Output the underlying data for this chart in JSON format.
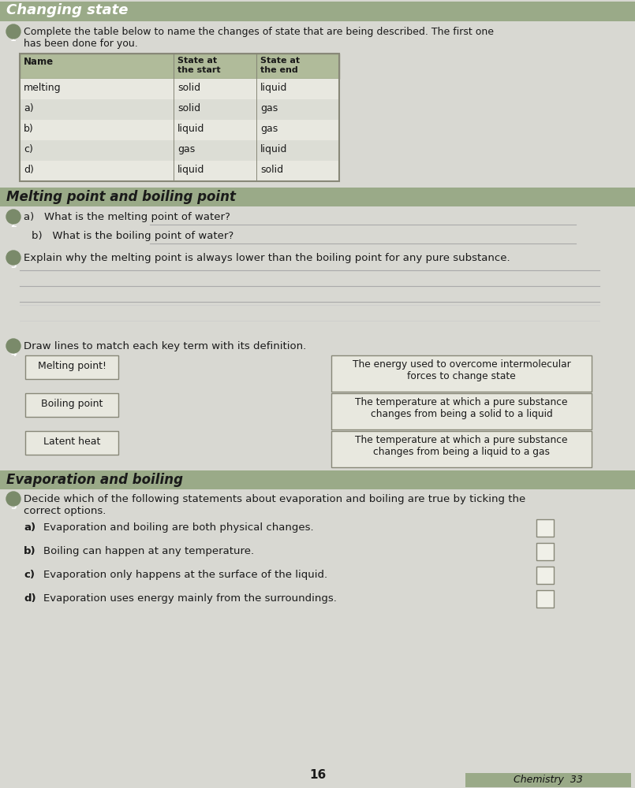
{
  "page_bg": "#d8d8d2",
  "title": "Changing state",
  "text_color": "#1a1a1a",
  "section_header_bg": "#9aaa88",
  "table_header_bg": "#b0bb9a",
  "table_bg_even": "#e8e8e0",
  "table_bg_odd": "#dcddd5",
  "table_border": "#888878",
  "q1_text": "Complete the table below to name the changes of state that are being described. The first one\nhas been done for you.",
  "table_headers": [
    "Name",
    "State at\nthe start",
    "State at\nthe end"
  ],
  "table_rows": [
    [
      "melting",
      "solid",
      "liquid"
    ],
    [
      "a)",
      "solid",
      "gas"
    ],
    [
      "b)",
      "liquid",
      "gas"
    ],
    [
      "c)",
      "gas",
      "liquid"
    ],
    [
      "d)",
      "liquid",
      "solid"
    ]
  ],
  "section2_title": "Melting point and boiling point",
  "q2a_text": "a)   What is the melting point of water?",
  "q2b_text": "b)   What is the boiling point of water?",
  "q3_text": "Explain why the melting point is always lower than the boiling point for any pure substance.",
  "q4_text": "Draw lines to match each key term with its definition.",
  "terms": [
    "Melting point!",
    "Boiling point",
    "Latent heat"
  ],
  "definitions": [
    "The energy used to overcome intermolecular\nforces to change state",
    "The temperature at which a pure substance\nchanges from being a solid to a liquid",
    "The temperature at which a pure substance\nchanges from being a liquid to a gas"
  ],
  "section3_title": "Evaporation and boiling",
  "q5_text": "Decide which of the following statements about evaporation and boiling are true by ticking the\ncorrect options.",
  "statements": [
    [
      "a)",
      "Evaporation and boiling are both physical changes."
    ],
    [
      "b)",
      "Boiling can happen at any temperature."
    ],
    [
      "c)",
      "Evaporation only happens at the surface of the liquid."
    ],
    [
      "d)",
      "Evaporation uses energy mainly from the surroundings."
    ]
  ],
  "page_number": "16",
  "footer_text": "Chemistry  33",
  "circle_color": "#7a8a6a",
  "line_color": "#aaaaaa",
  "box_bg": "#e8e8df",
  "box_border": "#888878"
}
